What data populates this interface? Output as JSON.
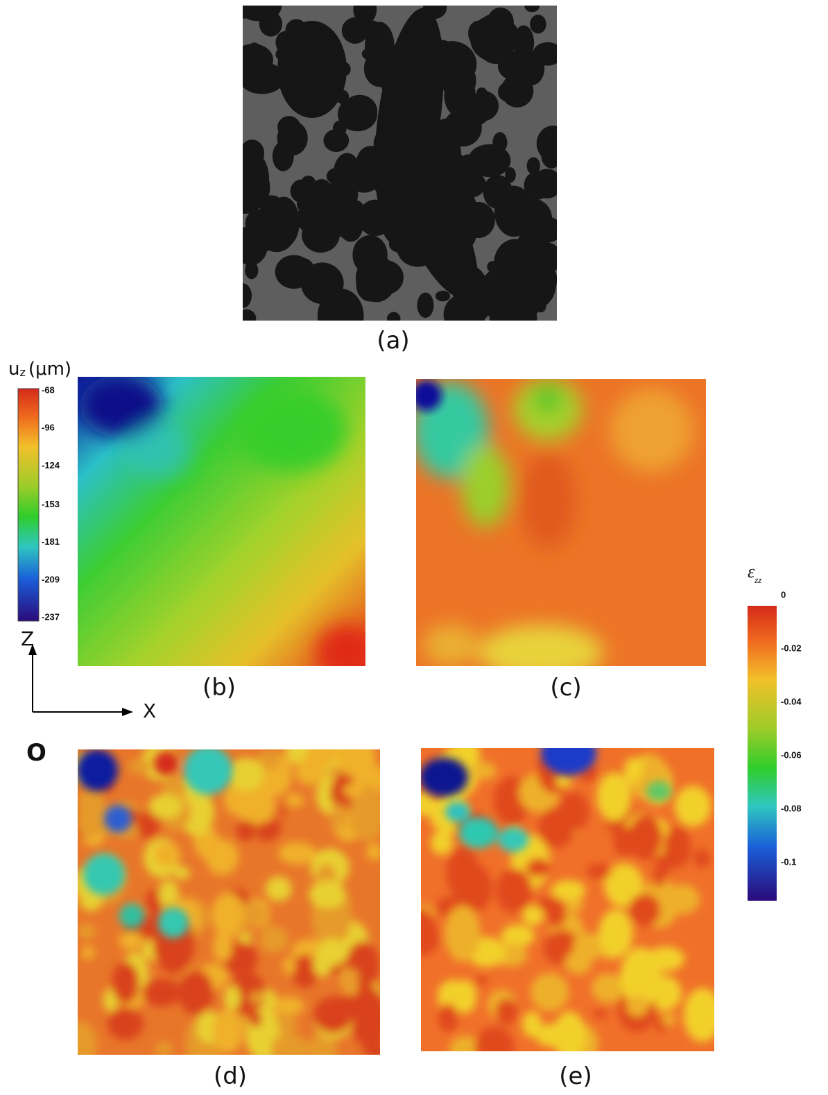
{
  "figure": {
    "panels": [
      {
        "label": "(a)"
      },
      {
        "label": "(b)"
      },
      {
        "label": "(c)"
      },
      {
        "label": "(d)"
      },
      {
        "label": "(e)"
      }
    ],
    "displacement_colorbar": {
      "symbol": "u",
      "subscript": "z",
      "unit": "(μm)",
      "ticks": [
        -68,
        -96,
        -124,
        -153,
        -181,
        -209,
        -237
      ]
    },
    "strain_colorbar": {
      "symbol": "ε",
      "subscript": "zz",
      "ticks": [
        0,
        -0.02,
        -0.04,
        -0.06,
        -0.08,
        -0.1
      ]
    },
    "axes": {
      "vertical": "Z",
      "horizontal": "X",
      "origin": "O"
    }
  }
}
